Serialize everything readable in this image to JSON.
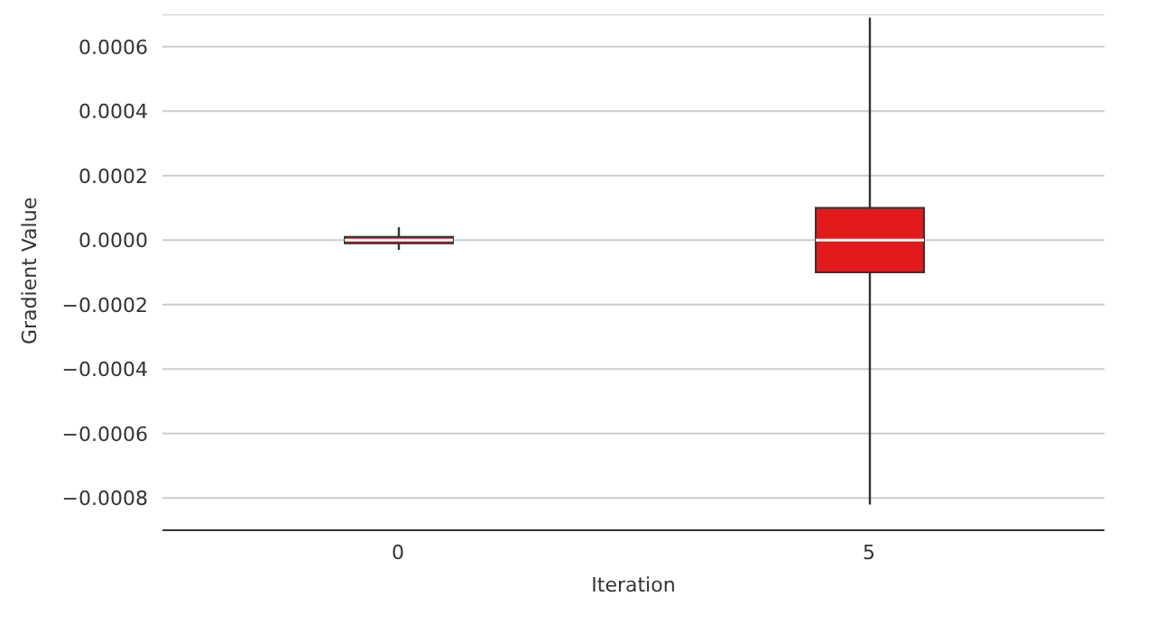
{
  "chart_data": {
    "type": "box",
    "xlabel": "Iteration",
    "ylabel": "Gradient Value",
    "categories": [
      "0",
      "5"
    ],
    "series": [
      {
        "color": "#e31a1c",
        "boxes": [
          {
            "low": -3e-05,
            "q1": -1e-05,
            "median": 0,
            "q3": 1e-05,
            "high": 4e-05
          },
          {
            "low": -0.00082,
            "q1": -0.0001,
            "median": 0,
            "q3": 0.0001,
            "high": 0.00069
          }
        ]
      }
    ],
    "ylim": [
      -0.0009,
      0.0007
    ],
    "yticks": [
      {
        "value": -0.0008,
        "label": "−0.0008"
      },
      {
        "value": -0.0006,
        "label": "−0.0006"
      },
      {
        "value": -0.0004,
        "label": "−0.0004"
      },
      {
        "value": -0.0002,
        "label": "−0.0002"
      },
      {
        "value": 0,
        "label": "0.0000"
      },
      {
        "value": 0.0002,
        "label": "0.0002"
      },
      {
        "value": 0.0004,
        "label": "0.0004"
      },
      {
        "value": 0.0006,
        "label": "0.0006"
      }
    ],
    "grid": "y"
  }
}
